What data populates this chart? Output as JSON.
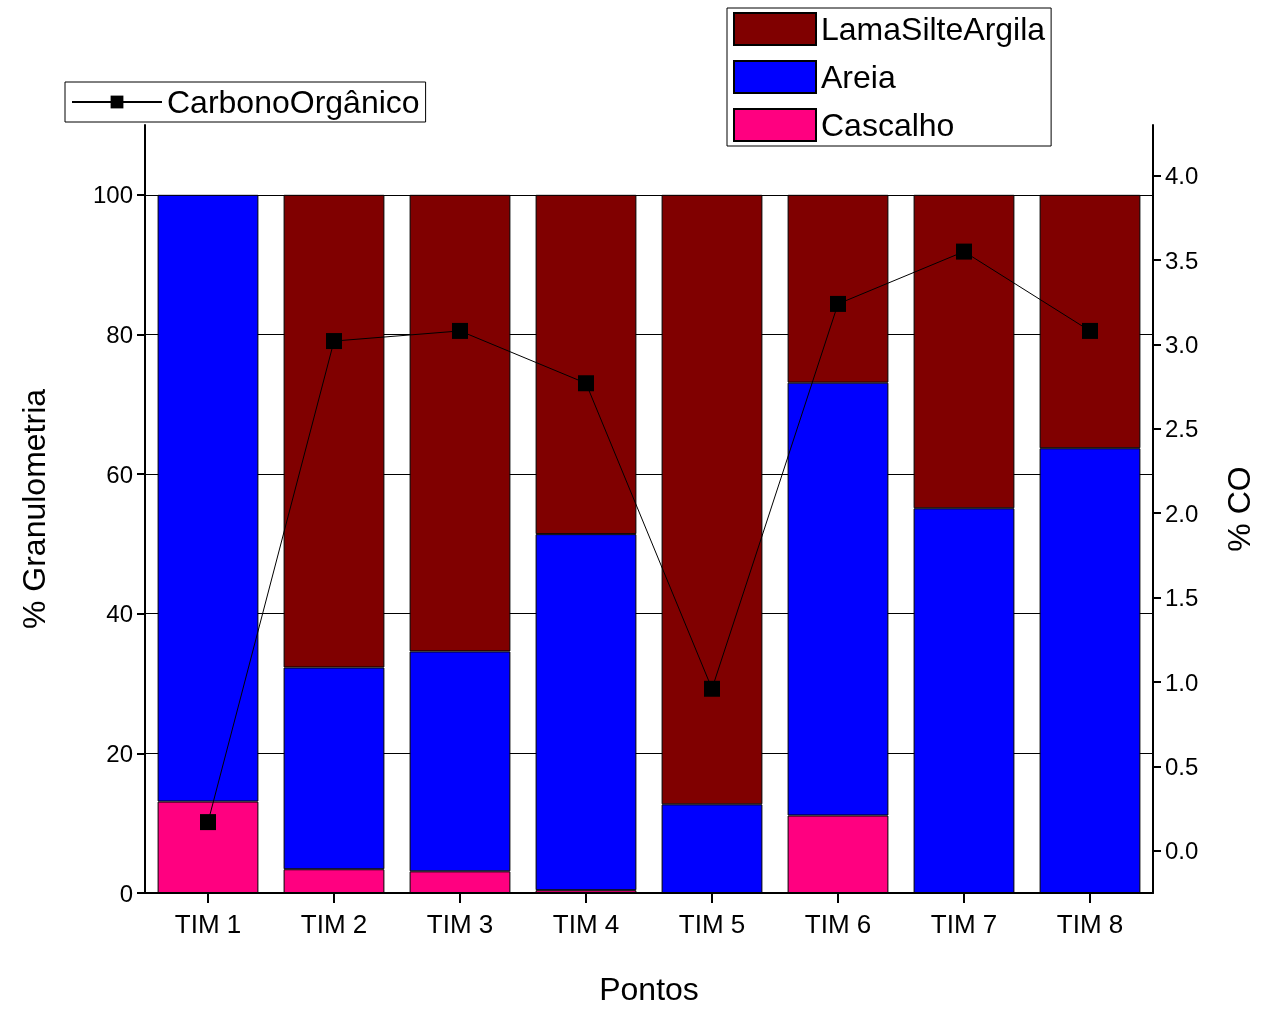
{
  "chart_data": {
    "type": "bar",
    "stacked": true,
    "xlabel": "Pontos",
    "ylabel": "% Granulometria",
    "y2label": "% CO",
    "categories": [
      "TIM 1",
      "TIM 2",
      "TIM 3",
      "TIM 4",
      "TIM 5",
      "TIM 6",
      "TIM 7",
      "TIM 8"
    ],
    "series": [
      {
        "name": "Cascalho",
        "color": "#ff0080",
        "values": [
          13.1,
          3.4,
          3.1,
          0.4,
          0,
          11.1,
          0,
          0
        ]
      },
      {
        "name": "Areia",
        "color": "#0000ff",
        "values": [
          86.9,
          28.9,
          31.5,
          51,
          12.7,
          62,
          55.1,
          63.7
        ]
      },
      {
        "name": "LamaSilteArgila",
        "color": "#800000",
        "values": [
          0,
          67.7,
          65.4,
          48.6,
          87.3,
          26.9,
          44.9,
          36.3
        ]
      },
      {
        "name": "CarbonoOrgânico",
        "type": "line",
        "axis": "y2",
        "marker": "square",
        "color": "#000000",
        "values": [
          0.17,
          3.02,
          3.08,
          2.77,
          0.96,
          3.24,
          3.55,
          3.08
        ]
      }
    ],
    "ylim": [
      0,
      110
    ],
    "yticks": [
      0,
      20,
      40,
      60,
      80,
      100
    ],
    "y2lim": [
      -0.25,
      4.3
    ],
    "y2ticks": [
      {
        "value": 0,
        "label": "0.0"
      },
      {
        "value": 0.5,
        "label": "0.5"
      },
      {
        "value": 1,
        "label": "1.0"
      },
      {
        "value": 1.5,
        "label": "1.5"
      },
      {
        "value": 2,
        "label": "2.0"
      },
      {
        "value": 2.5,
        "label": "2.5"
      },
      {
        "value": 3,
        "label": "3.0"
      },
      {
        "value": 3.5,
        "label": "3.5"
      },
      {
        "value": 4,
        "label": "4.0"
      }
    ],
    "grid": "y",
    "legend": "top"
  }
}
